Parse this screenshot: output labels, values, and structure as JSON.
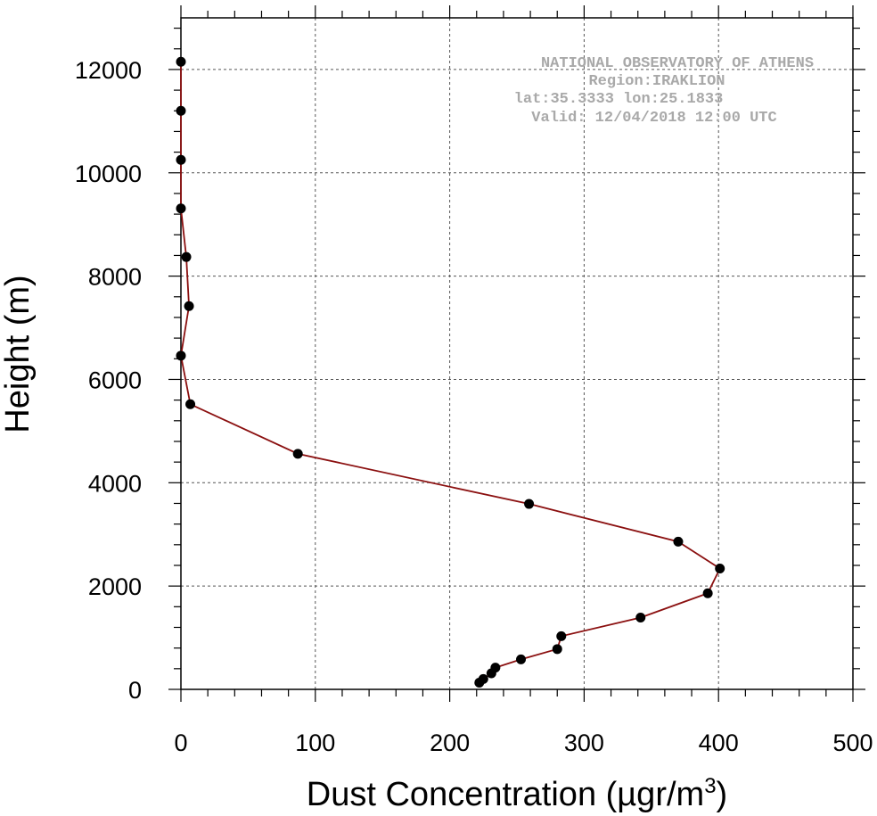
{
  "chart_data": {
    "type": "line",
    "xlabel": "Dust Concentration (µgr/m",
    "xlabel_sup": "3",
    "xlabel_close": ")",
    "ylabel": "Height (m)",
    "xlim": [
      0,
      500
    ],
    "ylim": [
      0,
      13000
    ],
    "x_ticks": [
      0,
      100,
      200,
      300,
      400,
      500
    ],
    "y_ticks": [
      0,
      2000,
      4000,
      6000,
      8000,
      10000,
      12000
    ],
    "grid": true,
    "line_color": "#8b1010",
    "marker_color": "#000000",
    "series": [
      {
        "x": [
          222,
          225,
          231,
          234,
          253,
          280,
          283,
          342,
          392,
          401,
          370,
          259,
          87,
          7,
          0,
          6,
          4,
          0,
          0,
          0,
          0
        ],
        "y": [
          130,
          200,
          310,
          420,
          580,
          780,
          1030,
          1390,
          1860,
          2340,
          2860,
          3590,
          4560,
          5520,
          6460,
          7420,
          8370,
          9310,
          10250,
          11200,
          12150
        ]
      }
    ]
  },
  "annotation": {
    "line1": "NATIONAL OBSERVATORY OF ATHENS",
    "line2": "Region:IRAKLION",
    "line3": "lat:35.3333  lon:25.1833",
    "line4": "Valid: 12/04/2018 12:00 UTC"
  }
}
